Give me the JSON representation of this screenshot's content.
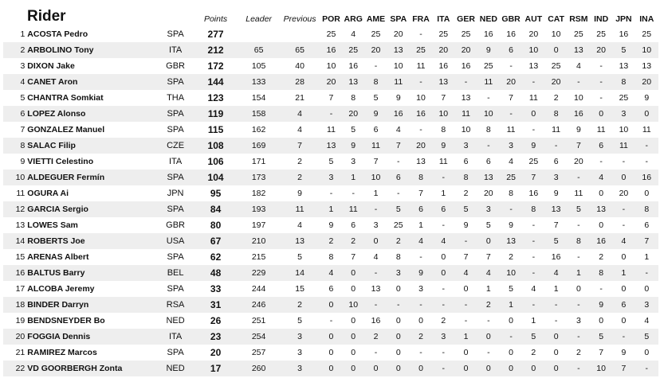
{
  "header": {
    "rider": "Rider",
    "points": "Points",
    "leader": "Leader",
    "previous": "Previous",
    "races": [
      "POR",
      "ARG",
      "AME",
      "SPA",
      "FRA",
      "ITA",
      "GER",
      "NED",
      "GBR",
      "AUT",
      "CAT",
      "RSM",
      "IND",
      "JPN",
      "INA"
    ]
  },
  "riders": [
    {
      "pos": "1",
      "name": "ACOSTA Pedro",
      "nat": "SPA",
      "points": "277",
      "leader": "",
      "previous": "",
      "results": [
        "25",
        "4",
        "25",
        "20",
        "-",
        "25",
        "25",
        "16",
        "16",
        "20",
        "10",
        "25",
        "25",
        "16",
        "25"
      ]
    },
    {
      "pos": "2",
      "name": "ARBOLINO Tony",
      "nat": "ITA",
      "points": "212",
      "leader": "65",
      "previous": "65",
      "results": [
        "16",
        "25",
        "20",
        "13",
        "25",
        "20",
        "20",
        "9",
        "6",
        "10",
        "0",
        "13",
        "20",
        "5",
        "10"
      ]
    },
    {
      "pos": "3",
      "name": "DIXON Jake",
      "nat": "GBR",
      "points": "172",
      "leader": "105",
      "previous": "40",
      "results": [
        "10",
        "16",
        "-",
        "10",
        "11",
        "16",
        "16",
        "25",
        "-",
        "13",
        "25",
        "4",
        "-",
        "13",
        "13"
      ]
    },
    {
      "pos": "4",
      "name": "CANET Aron",
      "nat": "SPA",
      "points": "144",
      "leader": "133",
      "previous": "28",
      "results": [
        "20",
        "13",
        "8",
        "11",
        "-",
        "13",
        "-",
        "11",
        "20",
        "-",
        "20",
        "-",
        "-",
        "8",
        "20"
      ]
    },
    {
      "pos": "5",
      "name": "CHANTRA Somkiat",
      "nat": "THA",
      "points": "123",
      "leader": "154",
      "previous": "21",
      "results": [
        "7",
        "8",
        "5",
        "9",
        "10",
        "7",
        "13",
        "-",
        "7",
        "11",
        "2",
        "10",
        "-",
        "25",
        "9"
      ]
    },
    {
      "pos": "6",
      "name": "LOPEZ Alonso",
      "nat": "SPA",
      "points": "119",
      "leader": "158",
      "previous": "4",
      "results": [
        "-",
        "20",
        "9",
        "16",
        "16",
        "10",
        "11",
        "10",
        "-",
        "0",
        "8",
        "16",
        "0",
        "3",
        "0"
      ]
    },
    {
      "pos": "7",
      "name": "GONZALEZ Manuel",
      "nat": "SPA",
      "points": "115",
      "leader": "162",
      "previous": "4",
      "results": [
        "11",
        "5",
        "6",
        "4",
        "-",
        "8",
        "10",
        "8",
        "11",
        "-",
        "11",
        "9",
        "11",
        "10",
        "11"
      ]
    },
    {
      "pos": "8",
      "name": "SALAC Filip",
      "nat": "CZE",
      "points": "108",
      "leader": "169",
      "previous": "7",
      "results": [
        "13",
        "9",
        "11",
        "7",
        "20",
        "9",
        "3",
        "-",
        "3",
        "9",
        "-",
        "7",
        "6",
        "11",
        "-"
      ]
    },
    {
      "pos": "9",
      "name": "VIETTI Celestino",
      "nat": "ITA",
      "points": "106",
      "leader": "171",
      "previous": "2",
      "results": [
        "5",
        "3",
        "7",
        "-",
        "13",
        "11",
        "6",
        "6",
        "4",
        "25",
        "6",
        "20",
        "-",
        "-",
        "-"
      ]
    },
    {
      "pos": "10",
      "name": "ALDEGUER Fermín",
      "nat": "SPA",
      "points": "104",
      "leader": "173",
      "previous": "2",
      "results": [
        "3",
        "1",
        "10",
        "6",
        "8",
        "-",
        "8",
        "13",
        "25",
        "7",
        "3",
        "-",
        "4",
        "0",
        "16"
      ]
    },
    {
      "pos": "11",
      "name": "OGURA Ai",
      "nat": "JPN",
      "points": "95",
      "leader": "182",
      "previous": "9",
      "results": [
        "-",
        "-",
        "1",
        "-",
        "7",
        "1",
        "2",
        "20",
        "8",
        "16",
        "9",
        "11",
        "0",
        "20",
        "0"
      ]
    },
    {
      "pos": "12",
      "name": "GARCIA Sergio",
      "nat": "SPA",
      "points": "84",
      "leader": "193",
      "previous": "11",
      "results": [
        "1",
        "11",
        "-",
        "5",
        "6",
        "6",
        "5",
        "3",
        "-",
        "8",
        "13",
        "5",
        "13",
        "-",
        "8"
      ]
    },
    {
      "pos": "13",
      "name": "LOWES Sam",
      "nat": "GBR",
      "points": "80",
      "leader": "197",
      "previous": "4",
      "results": [
        "9",
        "6",
        "3",
        "25",
        "1",
        "-",
        "9",
        "5",
        "9",
        "-",
        "7",
        "-",
        "0",
        "-",
        "6"
      ]
    },
    {
      "pos": "14",
      "name": "ROBERTS Joe",
      "nat": "USA",
      "points": "67",
      "leader": "210",
      "previous": "13",
      "results": [
        "2",
        "2",
        "0",
        "2",
        "4",
        "4",
        "-",
        "0",
        "13",
        "-",
        "5",
        "8",
        "16",
        "4",
        "7"
      ]
    },
    {
      "pos": "15",
      "name": "ARENAS Albert",
      "nat": "SPA",
      "points": "62",
      "leader": "215",
      "previous": "5",
      "results": [
        "8",
        "7",
        "4",
        "8",
        "-",
        "0",
        "7",
        "7",
        "2",
        "-",
        "16",
        "-",
        "2",
        "0",
        "1"
      ]
    },
    {
      "pos": "16",
      "name": "BALTUS Barry",
      "nat": "BEL",
      "points": "48",
      "leader": "229",
      "previous": "14",
      "results": [
        "4",
        "0",
        "-",
        "3",
        "9",
        "0",
        "4",
        "4",
        "10",
        "-",
        "4",
        "1",
        "8",
        "1",
        "-"
      ]
    },
    {
      "pos": "17",
      "name": "ALCOBA Jeremy",
      "nat": "SPA",
      "points": "33",
      "leader": "244",
      "previous": "15",
      "results": [
        "6",
        "0",
        "13",
        "0",
        "3",
        "-",
        "0",
        "1",
        "5",
        "4",
        "1",
        "0",
        "-",
        "0",
        "0"
      ]
    },
    {
      "pos": "18",
      "name": "BINDER Darryn",
      "nat": "RSA",
      "points": "31",
      "leader": "246",
      "previous": "2",
      "results": [
        "0",
        "10",
        "-",
        "-",
        "-",
        "-",
        "-",
        "2",
        "1",
        "-",
        "-",
        "-",
        "9",
        "6",
        "3"
      ]
    },
    {
      "pos": "19",
      "name": "BENDSNEYDER Bo",
      "nat": "NED",
      "points": "26",
      "leader": "251",
      "previous": "5",
      "results": [
        "-",
        "0",
        "16",
        "0",
        "0",
        "2",
        "-",
        "-",
        "0",
        "1",
        "-",
        "3",
        "0",
        "0",
        "4"
      ]
    },
    {
      "pos": "20",
      "name": "FOGGIA Dennis",
      "nat": "ITA",
      "points": "23",
      "leader": "254",
      "previous": "3",
      "results": [
        "0",
        "0",
        "2",
        "0",
        "2",
        "3",
        "1",
        "0",
        "-",
        "5",
        "0",
        "-",
        "5",
        "-",
        "5"
      ]
    },
    {
      "pos": "21",
      "name": "RAMIREZ Marcos",
      "nat": "SPA",
      "points": "20",
      "leader": "257",
      "previous": "3",
      "results": [
        "0",
        "0",
        "-",
        "0",
        "-",
        "-",
        "0",
        "-",
        "0",
        "2",
        "0",
        "2",
        "7",
        "9",
        "0"
      ]
    },
    {
      "pos": "22",
      "name": "VD GOORBERGH Zonta",
      "nat": "NED",
      "points": "17",
      "leader": "260",
      "previous": "3",
      "results": [
        "0",
        "0",
        "0",
        "0",
        "0",
        "-",
        "0",
        "0",
        "0",
        "0",
        "0",
        "-",
        "10",
        "7",
        "-"
      ]
    }
  ]
}
